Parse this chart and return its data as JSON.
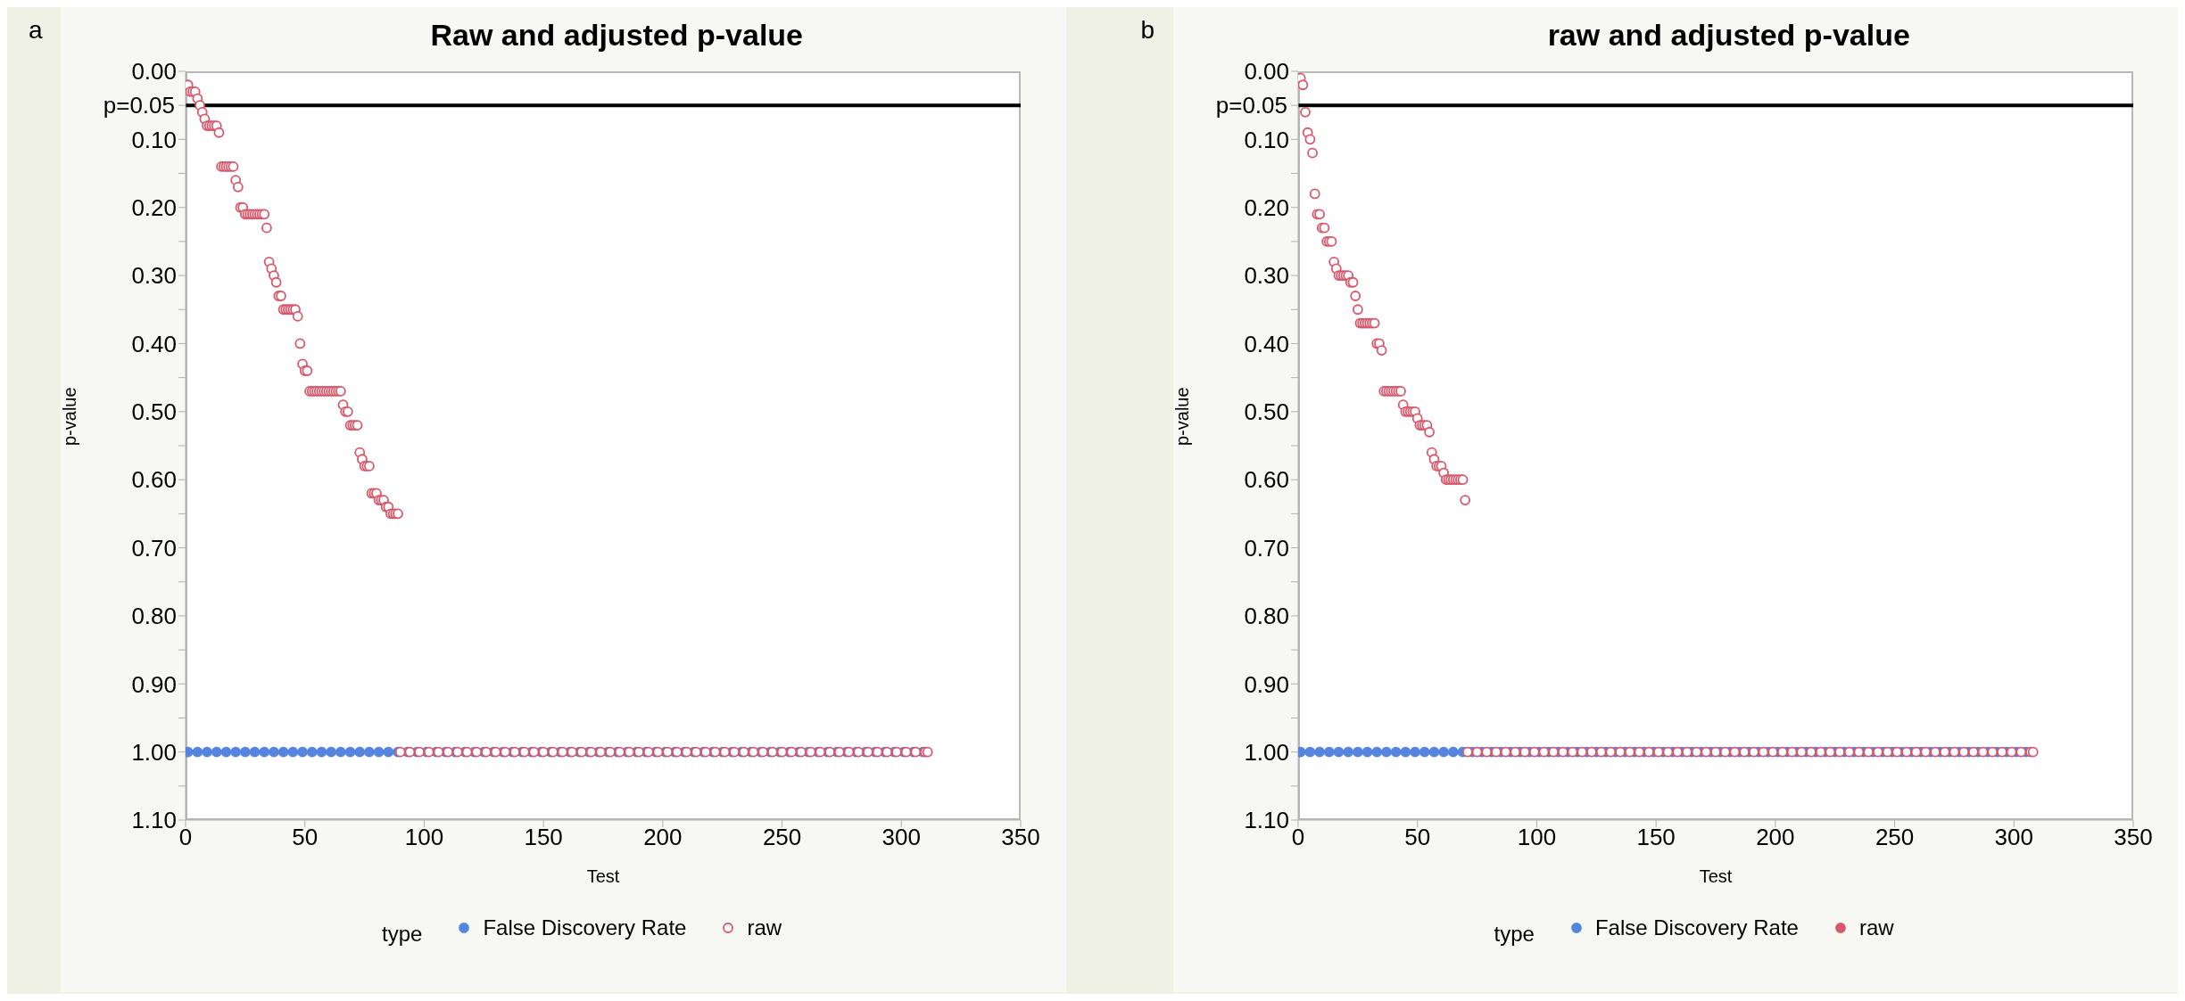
{
  "chart_data": [
    {
      "type": "scatter",
      "title": "Raw and adjusted p-value",
      "xlabel": "Test",
      "ylabel": "p-value",
      "legend_title": "type",
      "legend": "bottom",
      "marker": "circle",
      "annotations": [
        "a"
      ],
      "xlim": [
        0,
        350
      ],
      "xticks": [
        0,
        50,
        100,
        150,
        200,
        250,
        300,
        350
      ],
      "ylim": [
        1.1,
        0
      ],
      "yticks": [
        {
          "value": 0,
          "label": "0.00"
        },
        {
          "value": 0.05,
          "label": null
        },
        {
          "value": 0.1,
          "label": "0.10"
        },
        {
          "value": 0.15,
          "label": null
        },
        {
          "value": 0.2,
          "label": "0.20"
        },
        {
          "value": 0.25,
          "label": null
        },
        {
          "value": 0.3,
          "label": "0.30"
        },
        {
          "value": 0.35,
          "label": null
        },
        {
          "value": 0.4,
          "label": "0.40"
        },
        {
          "value": 0.45,
          "label": null
        },
        {
          "value": 0.5,
          "label": "0.50"
        },
        {
          "value": 0.55,
          "label": null
        },
        {
          "value": 0.6,
          "label": "0.60"
        },
        {
          "value": 0.65,
          "label": null
        },
        {
          "value": 0.7,
          "label": "0.70"
        },
        {
          "value": 0.75,
          "label": null
        },
        {
          "value": 0.8,
          "label": "0.80"
        },
        {
          "value": 0.85,
          "label": null
        },
        {
          "value": 0.9,
          "label": "0.90"
        },
        {
          "value": 0.95,
          "label": null
        },
        {
          "value": 1,
          "label": "1.00"
        },
        {
          "value": 1.05,
          "label": null
        },
        {
          "value": 1.1,
          "label": "1.10"
        }
      ],
      "grid": false,
      "ref_lines": [
        {
          "axis": "y",
          "value": 0.05,
          "label": "p=0.05",
          "color": "#000000"
        }
      ],
      "series": [
        {
          "name": "False Discovery Rate",
          "color": "#5585e0",
          "x": [
            1,
            5,
            9,
            13,
            17,
            21,
            25,
            29,
            33,
            37,
            41,
            45,
            49,
            53,
            57,
            61,
            65,
            69,
            73,
            77,
            81,
            85,
            89,
            93,
            97,
            101,
            105,
            109,
            113,
            117,
            121,
            125,
            129,
            133,
            137,
            141,
            145,
            149,
            153,
            157,
            161,
            165,
            169,
            173,
            177,
            181,
            185,
            189,
            193,
            197,
            201,
            205,
            209,
            213,
            217,
            221,
            225,
            229,
            233,
            237,
            241,
            245,
            249,
            253,
            257,
            261,
            265,
            269,
            273,
            277,
            281,
            285,
            289,
            293,
            297,
            301,
            305,
            309
          ],
          "values": [
            1,
            1,
            1,
            1,
            1,
            1,
            1,
            1,
            1,
            1,
            1,
            1,
            1,
            1,
            1,
            1,
            1,
            1,
            1,
            1,
            1,
            1,
            1,
            1,
            1,
            1,
            1,
            1,
            1,
            1,
            1,
            1,
            1,
            1,
            1,
            1,
            1,
            1,
            1,
            1,
            1,
            1,
            1,
            1,
            1,
            1,
            1,
            1,
            1,
            1,
            1,
            1,
            1,
            1,
            1,
            1,
            1,
            1,
            1,
            1,
            1,
            1,
            1,
            1,
            1,
            1,
            1,
            1,
            1,
            1,
            1,
            1,
            1,
            1,
            1,
            1,
            1,
            1
          ]
        },
        {
          "name": "raw",
          "color": "#d9576b",
          "x": [
            1,
            2,
            3,
            4,
            5,
            6,
            7,
            8,
            9,
            10,
            11,
            12,
            13,
            14,
            15,
            16,
            17,
            18,
            19,
            20,
            21,
            22,
            23,
            24,
            25,
            26,
            27,
            28,
            29,
            30,
            31,
            32,
            33,
            34,
            35,
            36,
            37,
            38,
            39,
            40,
            41,
            42,
            43,
            44,
            45,
            46,
            47,
            48,
            49,
            50,
            51,
            52,
            53,
            54,
            55,
            56,
            57,
            58,
            59,
            60,
            61,
            62,
            63,
            64,
            65,
            66,
            67,
            68,
            69,
            70,
            71,
            72,
            73,
            74,
            75,
            76,
            77,
            78,
            79,
            80,
            81,
            82,
            83,
            84,
            85,
            86,
            87,
            88,
            89,
            90,
            94,
            98,
            102,
            106,
            110,
            114,
            118,
            122,
            126,
            130,
            134,
            138,
            142,
            146,
            150,
            154,
            158,
            162,
            166,
            170,
            174,
            178,
            182,
            186,
            190,
            194,
            198,
            202,
            206,
            210,
            214,
            218,
            222,
            226,
            230,
            234,
            238,
            242,
            246,
            250,
            254,
            258,
            262,
            266,
            270,
            274,
            278,
            282,
            286,
            290,
            294,
            298,
            302,
            306,
            310,
            311
          ],
          "values": [
            0.02,
            0.03,
            0.03,
            0.03,
            0.04,
            0.05,
            0.06,
            0.07,
            0.08,
            0.08,
            0.08,
            0.08,
            0.08,
            0.09,
            0.14,
            0.14,
            0.14,
            0.14,
            0.14,
            0.14,
            0.16,
            0.17,
            0.2,
            0.2,
            0.21,
            0.21,
            0.21,
            0.21,
            0.21,
            0.21,
            0.21,
            0.21,
            0.21,
            0.23,
            0.28,
            0.29,
            0.3,
            0.31,
            0.33,
            0.33,
            0.35,
            0.35,
            0.35,
            0.35,
            0.35,
            0.35,
            0.36,
            0.4,
            0.43,
            0.44,
            0.44,
            0.47,
            0.47,
            0.47,
            0.47,
            0.47,
            0.47,
            0.47,
            0.47,
            0.47,
            0.47,
            0.47,
            0.47,
            0.47,
            0.47,
            0.49,
            0.5,
            0.5,
            0.52,
            0.52,
            0.52,
            0.52,
            0.56,
            0.57,
            0.58,
            0.58,
            0.58,
            0.62,
            0.62,
            0.62,
            0.63,
            0.63,
            0.63,
            0.64,
            0.64,
            0.65,
            0.65,
            0.65,
            0.65,
            1,
            1,
            1,
            1,
            1,
            1,
            1,
            1,
            1,
            1,
            1,
            1,
            1,
            1,
            1,
            1,
            1,
            1,
            1,
            1,
            1,
            1,
            1,
            1,
            1,
            1,
            1,
            1,
            1,
            1,
            1,
            1,
            1,
            1,
            1,
            1,
            1,
            1,
            1,
            1,
            1,
            1,
            1,
            1,
            1,
            1,
            1,
            1,
            1,
            1,
            1,
            1,
            1,
            1,
            1,
            1,
            1
          ]
        }
      ]
    },
    {
      "type": "scatter",
      "title": "raw and adjusted p-value",
      "xlabel": "Test",
      "ylabel": "p-value",
      "legend_title": "type",
      "legend": "bottom",
      "marker": "circle",
      "annotations": [
        "b"
      ],
      "xlim": [
        0,
        350
      ],
      "xticks": [
        0,
        50,
        100,
        150,
        200,
        250,
        300,
        350
      ],
      "ylim": [
        1.1,
        0
      ],
      "yticks": [
        {
          "value": 0,
          "label": "0.00"
        },
        {
          "value": 0.05,
          "label": null
        },
        {
          "value": 0.1,
          "label": "0.10"
        },
        {
          "value": 0.15,
          "label": null
        },
        {
          "value": 0.2,
          "label": "0.20"
        },
        {
          "value": 0.25,
          "label": null
        },
        {
          "value": 0.3,
          "label": "0.30"
        },
        {
          "value": 0.35,
          "label": null
        },
        {
          "value": 0.4,
          "label": "0.40"
        },
        {
          "value": 0.45,
          "label": null
        },
        {
          "value": 0.5,
          "label": "0.50"
        },
        {
          "value": 0.55,
          "label": null
        },
        {
          "value": 0.6,
          "label": "0.60"
        },
        {
          "value": 0.65,
          "label": null
        },
        {
          "value": 0.7,
          "label": "0.70"
        },
        {
          "value": 0.75,
          "label": null
        },
        {
          "value": 0.8,
          "label": "0.80"
        },
        {
          "value": 0.85,
          "label": null
        },
        {
          "value": 0.9,
          "label": "0.90"
        },
        {
          "value": 0.95,
          "label": null
        },
        {
          "value": 1,
          "label": "1.00"
        },
        {
          "value": 1.05,
          "label": null
        },
        {
          "value": 1.1,
          "label": "1.10"
        }
      ],
      "grid": false,
      "ref_lines": [
        {
          "axis": "y",
          "value": 0.05,
          "label": "p=0.05",
          "color": "#000000"
        }
      ],
      "series": [
        {
          "name": "False Discovery Rate",
          "color": "#5585e0",
          "x": [
            1,
            5,
            9,
            13,
            17,
            21,
            25,
            29,
            33,
            37,
            41,
            45,
            49,
            53,
            57,
            61,
            65,
            69,
            73,
            77,
            81,
            85,
            89,
            93,
            97,
            101,
            105,
            109,
            113,
            117,
            121,
            125,
            129,
            133,
            137,
            141,
            145,
            149,
            153,
            157,
            161,
            165,
            169,
            173,
            177,
            181,
            185,
            189,
            193,
            197,
            201,
            205,
            209,
            213,
            217,
            221,
            225,
            229,
            233,
            237,
            241,
            245,
            249,
            253,
            257,
            261,
            265,
            269,
            273,
            277,
            281,
            285,
            289,
            293,
            297,
            301,
            305
          ],
          "values": [
            1,
            1,
            1,
            1,
            1,
            1,
            1,
            1,
            1,
            1,
            1,
            1,
            1,
            1,
            1,
            1,
            1,
            1,
            1,
            1,
            1,
            1,
            1,
            1,
            1,
            1,
            1,
            1,
            1,
            1,
            1,
            1,
            1,
            1,
            1,
            1,
            1,
            1,
            1,
            1,
            1,
            1,
            1,
            1,
            1,
            1,
            1,
            1,
            1,
            1,
            1,
            1,
            1,
            1,
            1,
            1,
            1,
            1,
            1,
            1,
            1,
            1,
            1,
            1,
            1,
            1,
            1,
            1,
            1,
            1,
            1,
            1,
            1,
            1,
            1,
            1,
            1
          ]
        },
        {
          "name": "raw",
          "color": "#d9576b",
          "x": [
            1,
            2,
            3,
            4,
            5,
            6,
            7,
            8,
            9,
            10,
            11,
            12,
            13,
            14,
            15,
            16,
            17,
            18,
            19,
            20,
            21,
            22,
            23,
            24,
            25,
            26,
            27,
            28,
            29,
            30,
            31,
            32,
            33,
            34,
            35,
            36,
            37,
            38,
            39,
            40,
            41,
            42,
            43,
            44,
            45,
            46,
            47,
            48,
            49,
            50,
            51,
            52,
            53,
            54,
            55,
            56,
            57,
            58,
            59,
            60,
            61,
            62,
            63,
            64,
            65,
            66,
            67,
            68,
            69,
            70,
            71,
            75,
            79,
            83,
            87,
            91,
            95,
            99,
            103,
            107,
            111,
            115,
            119,
            123,
            127,
            131,
            135,
            139,
            143,
            147,
            151,
            155,
            159,
            163,
            167,
            171,
            175,
            179,
            183,
            187,
            191,
            195,
            199,
            203,
            207,
            211,
            215,
            219,
            223,
            227,
            231,
            235,
            239,
            243,
            247,
            251,
            255,
            259,
            263,
            267,
            271,
            275,
            279,
            283,
            287,
            291,
            295,
            299,
            303,
            307,
            308
          ],
          "values": [
            0.01,
            0.02,
            0.06,
            0.09,
            0.1,
            0.12,
            0.18,
            0.21,
            0.21,
            0.23,
            0.23,
            0.25,
            0.25,
            0.25,
            0.28,
            0.29,
            0.3,
            0.3,
            0.3,
            0.3,
            0.3,
            0.31,
            0.31,
            0.33,
            0.35,
            0.37,
            0.37,
            0.37,
            0.37,
            0.37,
            0.37,
            0.37,
            0.4,
            0.4,
            0.41,
            0.47,
            0.47,
            0.47,
            0.47,
            0.47,
            0.47,
            0.47,
            0.47,
            0.49,
            0.5,
            0.5,
            0.5,
            0.5,
            0.5,
            0.51,
            0.52,
            0.52,
            0.52,
            0.52,
            0.53,
            0.56,
            0.57,
            0.58,
            0.58,
            0.58,
            0.59,
            0.6,
            0.6,
            0.6,
            0.6,
            0.6,
            0.6,
            0.6,
            0.6,
            0.63,
            1,
            1,
            1,
            1,
            1,
            1,
            1,
            1,
            1,
            1,
            1,
            1,
            1,
            1,
            1,
            1,
            1,
            1,
            1,
            1,
            1,
            1,
            1,
            1,
            1,
            1,
            1,
            1,
            1,
            1,
            1,
            1,
            1,
            1,
            1,
            1,
            1,
            1,
            1,
            1,
            1,
            1,
            1,
            1,
            1,
            1,
            1,
            1,
            1,
            1,
            1,
            1,
            1,
            1,
            1,
            1,
            1,
            1,
            1,
            1,
            1
          ]
        }
      ]
    }
  ]
}
